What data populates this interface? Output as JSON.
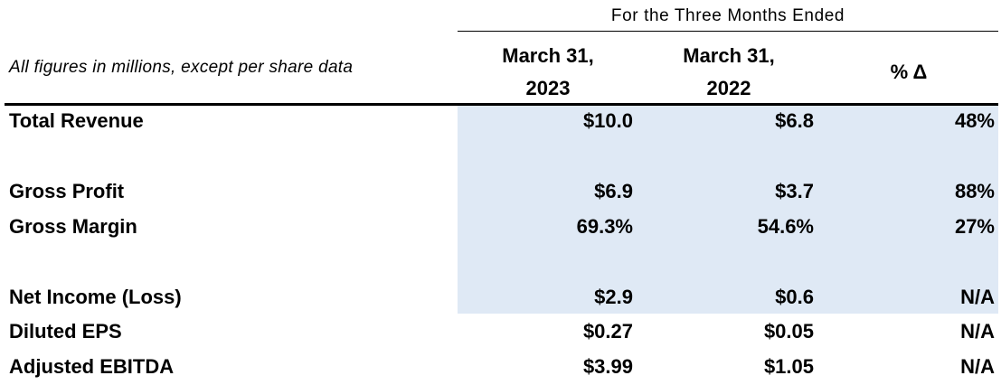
{
  "header": {
    "period": "For the Three Months Ended",
    "note": "All figures in millions, except per share data",
    "col1_line1": "March 31,",
    "col1_line2": "2023",
    "col2_line1": "March 31,",
    "col2_line2": "2022",
    "col3": "% Δ"
  },
  "rows": [
    {
      "label": "Total Revenue",
      "v2023": "$10.0",
      "v2022": "$6.8",
      "pct": "48%"
    },
    {
      "label": "Gross Profit",
      "v2023": "$6.9",
      "v2022": "$3.7",
      "pct": "88%"
    },
    {
      "label": "Gross Margin",
      "v2023": "69.3%",
      "v2022": "54.6%",
      "pct": "27%"
    },
    {
      "label": "Net Income (Loss)",
      "v2023": "$2.9",
      "v2022": "$0.6",
      "pct": "N/A"
    },
    {
      "label": "Diluted EPS",
      "v2023": "$0.27",
      "v2022": "$0.05",
      "pct": "N/A"
    },
    {
      "label": "Adjusted EBITDA",
      "v2023": "$3.99",
      "v2022": "$1.05",
      "pct": "N/A"
    }
  ],
  "colors": {
    "shade": "#dfe9f5",
    "text": "#000000",
    "rule": "#000000"
  }
}
